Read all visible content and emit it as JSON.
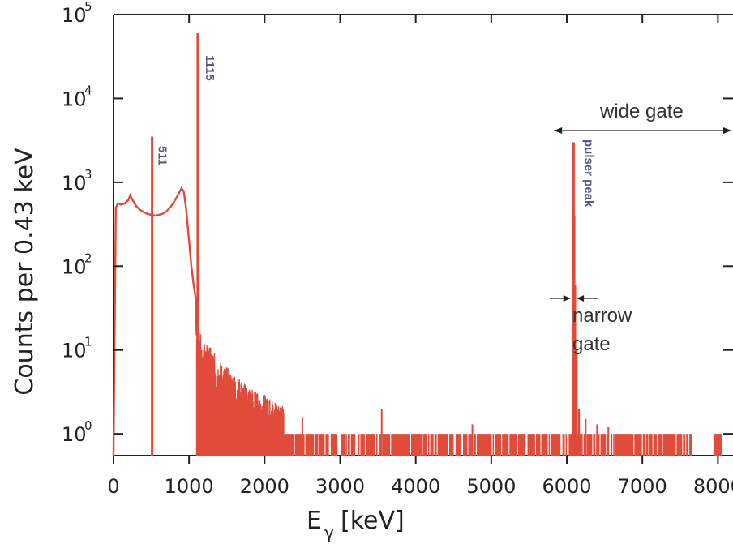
{
  "chart_data": {
    "type": "histogram",
    "xlabel_main": "E",
    "xlabel_sub": "γ",
    "xlabel_unit": "[keV]",
    "ylabel": "Counts per 0.43 keV",
    "xlim": [
      0,
      8200
    ],
    "ylim": [
      0.55,
      100000
    ],
    "y_scale": "log",
    "x_ticks": [
      0,
      1000,
      2000,
      3000,
      4000,
      5000,
      6000,
      7000,
      8000
    ],
    "x_tick_labels": [
      "0",
      "1000",
      "2000",
      "3000",
      "4000",
      "5000",
      "6000",
      "7000",
      "8000"
    ],
    "y_ticks": [
      {
        "value": 1,
        "base": "10",
        "exp": "0"
      },
      {
        "value": 10,
        "base": "10",
        "exp": "1"
      },
      {
        "value": 100,
        "base": "10",
        "exp": "2"
      },
      {
        "value": 1000,
        "base": "10",
        "exp": "3"
      },
      {
        "value": 10000,
        "base": "10",
        "exp": "4"
      },
      {
        "value": 100000,
        "base": "10",
        "exp": "5"
      }
    ],
    "continuum": [
      [
        0,
        0.6
      ],
      [
        30,
        500
      ],
      [
        60,
        560
      ],
      [
        100,
        540
      ],
      [
        150,
        560
      ],
      [
        200,
        620
      ],
      [
        220,
        700
      ],
      [
        250,
        620
      ],
      [
        300,
        520
      ],
      [
        350,
        470
      ],
      [
        400,
        440
      ],
      [
        450,
        420
      ],
      [
        500,
        410
      ],
      [
        550,
        400
      ],
      [
        600,
        410
      ],
      [
        650,
        420
      ],
      [
        700,
        450
      ],
      [
        750,
        500
      ],
      [
        800,
        580
      ],
      [
        850,
        700
      ],
      [
        900,
        850
      ],
      [
        930,
        780
      ],
      [
        960,
        500
      ],
      [
        1000,
        200
      ],
      [
        1030,
        100
      ],
      [
        1060,
        60
      ],
      [
        1090,
        40
      ],
      [
        1100,
        15
      ],
      [
        1130,
        9
      ],
      [
        1160,
        7
      ],
      [
        1200,
        6
      ],
      [
        1300,
        5
      ],
      [
        1400,
        3.5
      ],
      [
        1500,
        3
      ],
      [
        1600,
        2.5
      ],
      [
        1700,
        2
      ],
      [
        1800,
        1.8
      ],
      [
        1900,
        1.5
      ],
      [
        2000,
        1.4
      ],
      [
        2100,
        1.2
      ],
      [
        2200,
        1.1
      ],
      [
        2250,
        1.0
      ]
    ],
    "peaks": [
      {
        "x": 511,
        "y": 3500,
        "label": "511"
      },
      {
        "x": 1115,
        "y": 60000,
        "label": "1115"
      },
      {
        "x": 6090,
        "y": 3000,
        "label": "pulser peak"
      }
    ],
    "secondary_peaks": [
      {
        "x": 6100,
        "y": 400
      },
      {
        "x": 6110,
        "y": 60
      },
      {
        "x": 6130,
        "y": 10
      },
      {
        "x": 6160,
        "y": 2
      }
    ],
    "scattered_counts": [
      {
        "x": 2500,
        "y": 1.6
      },
      {
        "x": 3550,
        "y": 2
      },
      {
        "x": 4750,
        "y": 1.3
      },
      {
        "x": 1420,
        "y": 1.6
      },
      {
        "x": 1650,
        "y": 2.8
      },
      {
        "x": 1900,
        "y": 3
      },
      {
        "x": 2250,
        "y": 1.8
      },
      {
        "x": 6250,
        "y": 1.5
      },
      {
        "x": 6400,
        "y": 1.3
      },
      {
        "x": 6550,
        "y": 1.2
      }
    ],
    "flat_band": {
      "x_start": 1400,
      "x_end": 7650,
      "y": 1,
      "extra": [
        [
          7950,
          8050
        ]
      ]
    },
    "gates": [
      {
        "label": "wide gate",
        "x_start": 5830,
        "x_end": 8200
      },
      {
        "label_line1": "narrow",
        "label_line2": "gate",
        "x_start": 6050,
        "x_end": 6130
      }
    ],
    "series_color": "#e04b3a",
    "axis_color": "#222222",
    "peak_label_color": "#5a5a8c"
  }
}
